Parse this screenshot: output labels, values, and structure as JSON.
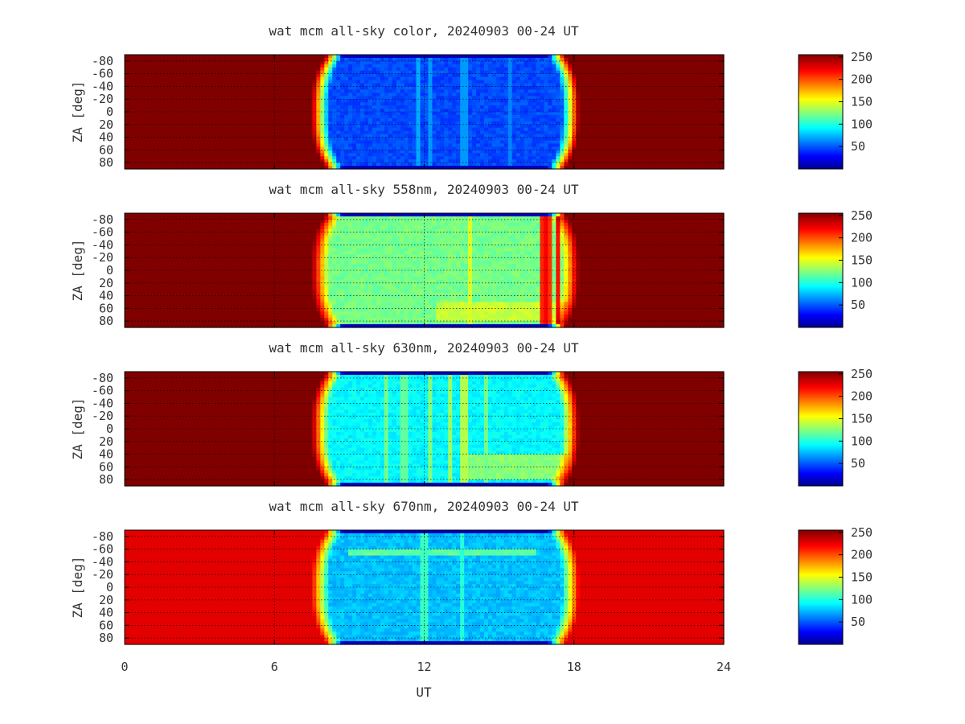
{
  "figure": {
    "xlabel": "UT",
    "ylabel": "ZA [deg]",
    "x_ticks": [
      "0",
      "6",
      "12",
      "18",
      "24"
    ],
    "y_ticks": [
      "-80",
      "-60",
      "-40",
      "-20",
      "0",
      "20",
      "40",
      "60",
      "80"
    ],
    "cb_ticks": [
      "250",
      "200",
      "150",
      "100",
      "50"
    ]
  },
  "chart_data": [
    {
      "type": "heatmap",
      "title": "wat mcm all-sky color, 20240903 00-24 UT",
      "x_range": [
        0,
        24
      ],
      "y_range": [
        -90,
        90
      ],
      "y_reversed": true,
      "color_range": [
        0,
        255
      ],
      "colormap": "jet",
      "grid": true,
      "day_value": 255,
      "night_window_ut": [
        7.5,
        18.2
      ],
      "night_level": 50,
      "bands": [],
      "streaks": [
        {
          "x": 11.7,
          "v": 75
        },
        {
          "x": 12.2,
          "v": 70
        },
        {
          "x": 13.6,
          "v": 70
        },
        {
          "x": 15.5,
          "v": 65
        }
      ]
    },
    {
      "type": "heatmap",
      "title": "wat mcm all-sky 558nm, 20240903 00-24 UT",
      "x_range": [
        0,
        24
      ],
      "y_range": [
        -90,
        90
      ],
      "y_reversed": true,
      "color_range": [
        0,
        255
      ],
      "colormap": "jet",
      "grid": true,
      "day_value": 255,
      "night_window_ut": [
        7.5,
        18.2
      ],
      "night_level": 125,
      "bands": [
        {
          "za": [
            50,
            82
          ],
          "ut": [
            12.5,
            17.8
          ],
          "v": 145
        }
      ],
      "streaks": [
        {
          "x": 16.7,
          "v": 215
        },
        {
          "x": 16.9,
          "v": 225
        },
        {
          "x": 17.1,
          "v": 210
        },
        {
          "x": 17.3,
          "v": 220
        },
        {
          "x": 13.8,
          "v": 150
        }
      ]
    },
    {
      "type": "heatmap",
      "title": "wat mcm all-sky 630nm, 20240903 00-24 UT",
      "x_range": [
        0,
        24
      ],
      "y_range": [
        -90,
        90
      ],
      "y_reversed": true,
      "color_range": [
        0,
        255
      ],
      "colormap": "jet",
      "grid": true,
      "day_value": 255,
      "night_window_ut": [
        7.5,
        18.2
      ],
      "night_level": 95,
      "bands": [
        {
          "za": [
            40,
            80
          ],
          "ut": [
            13.5,
            17.8
          ],
          "v": 130
        }
      ],
      "streaks": [
        {
          "x": 10.5,
          "v": 125
        },
        {
          "x": 11.2,
          "v": 120
        },
        {
          "x": 12.3,
          "v": 130
        },
        {
          "x": 13.0,
          "v": 135
        },
        {
          "x": 13.6,
          "v": 140
        },
        {
          "x": 14.5,
          "v": 125
        }
      ]
    },
    {
      "type": "heatmap",
      "title": "wat mcm all-sky 670nm, 20240903 00-24 UT",
      "x_range": [
        0,
        24
      ],
      "y_range": [
        -90,
        90
      ],
      "y_reversed": true,
      "color_range": [
        0,
        255
      ],
      "colormap": "jet",
      "grid": true,
      "day_value": 230,
      "night_window_ut": [
        7.5,
        18.2
      ],
      "night_level": 80,
      "bands": [
        {
          "za": [
            -58,
            -48
          ],
          "ut": [
            9.0,
            16.5
          ],
          "v": 120
        }
      ],
      "streaks": [
        {
          "x": 12.0,
          "v": 110
        },
        {
          "x": 13.5,
          "v": 105
        }
      ]
    }
  ]
}
